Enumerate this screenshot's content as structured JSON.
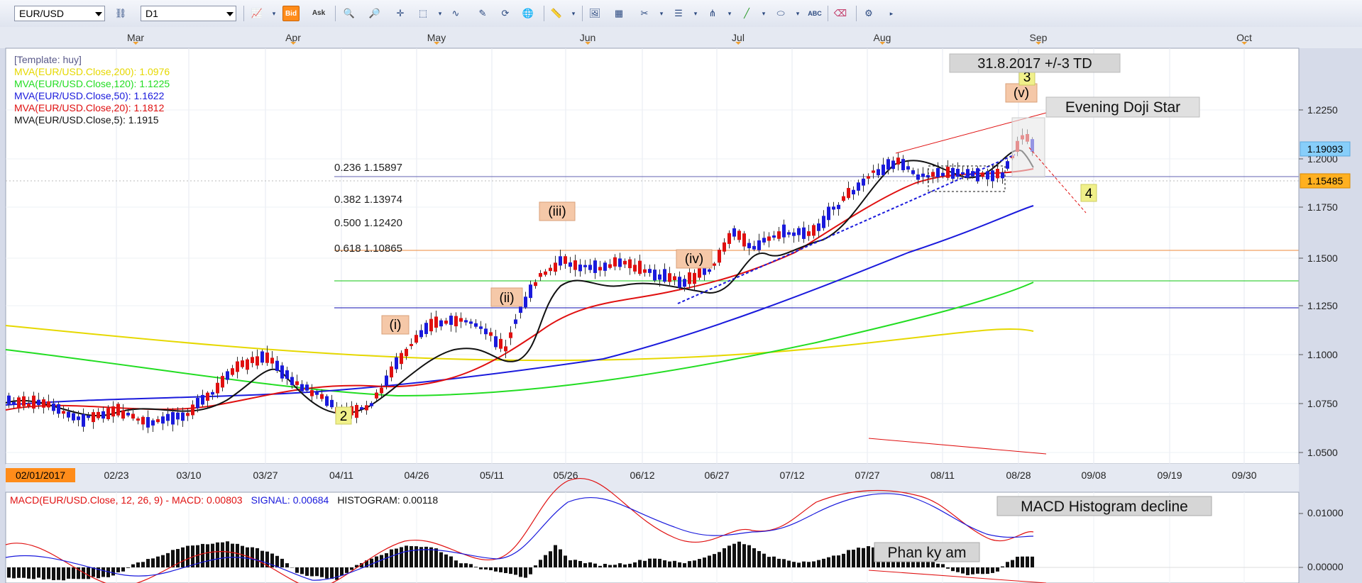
{
  "toolbar": {
    "symbol": "EUR/USD",
    "timeframe": "D1",
    "bid_label": "Bid",
    "ask_label": "Ask"
  },
  "months": [
    "Mar",
    "Apr",
    "May",
    "Jun",
    "Jul",
    "Aug",
    "Sep",
    "Oct"
  ],
  "date_axis": {
    "start_label": "02/01/2017",
    "labels": [
      "02/23",
      "03/10",
      "03/27",
      "04/11",
      "04/26",
      "05/11",
      "05/26",
      "06/12",
      "06/27",
      "07/12",
      "07/27",
      "08/11",
      "08/28",
      "09/08",
      "09/19",
      "09/30"
    ]
  },
  "price_axis": {
    "labels": [
      "1.2250",
      "1.2000",
      "1.1750",
      "1.1500",
      "1.1250",
      "1.1000",
      "1.0750",
      "1.0500"
    ],
    "current_price": "1.19093",
    "marker_price": "1.15485"
  },
  "legend": {
    "template": "[Template: huy]",
    "mva": [
      {
        "label": "MVA(EUR/USD.Close,200): 1.0976",
        "color": "#e6d800"
      },
      {
        "label": "MVA(EUR/USD.Close,120): 1.1225",
        "color": "#22dd22"
      },
      {
        "label": "MVA(EUR/USD.Close,50): 1.1622",
        "color": "#1a1adc"
      },
      {
        "label": "MVA(EUR/USD.Close,20): 1.1812",
        "color": "#e01010"
      },
      {
        "label": "MVA(EUR/USD.Close,5): 1.1915",
        "color": "#111111"
      }
    ]
  },
  "fib": [
    {
      "label": "0.236 1.15897",
      "color": "#8080c0"
    },
    {
      "label": "0.382 1.13974",
      "color": "#f0a060"
    },
    {
      "label": "0.500 1.12420",
      "color": "#40d040"
    },
    {
      "label": "0.618 1.10865",
      "color": "#4040c0"
    }
  ],
  "waves": {
    "i": "(i)",
    "ii": "(ii)",
    "iii": "(iii)",
    "iv": "(iv)",
    "v": "(v)",
    "two": "2",
    "three": "3",
    "four": "4"
  },
  "annotations": {
    "date_note": "31.8.2017 +/-3 TD",
    "pattern": "Evening Doji Star",
    "macd_note": "MACD Histogram decline",
    "divergence": "Phan ky am"
  },
  "macd": {
    "title": "MACD(EUR/USD.Close, 12, 26, 9) -",
    "macd_label": "MACD: 0.00803",
    "signal_label": "SIGNAL: 0.00684",
    "histogram_label": "HISTOGRAM: 0.00118",
    "axis_labels": [
      "0.01000",
      "0.00000"
    ]
  },
  "colors": {
    "up": "#1a1adc",
    "down": "#e01010",
    "macd_line": "#e01010",
    "signal_line": "#1a1adc",
    "wave_box": "#f5c8a8",
    "current_price_bg": "#87cefa",
    "marker_price_bg": "#ffb020"
  }
}
